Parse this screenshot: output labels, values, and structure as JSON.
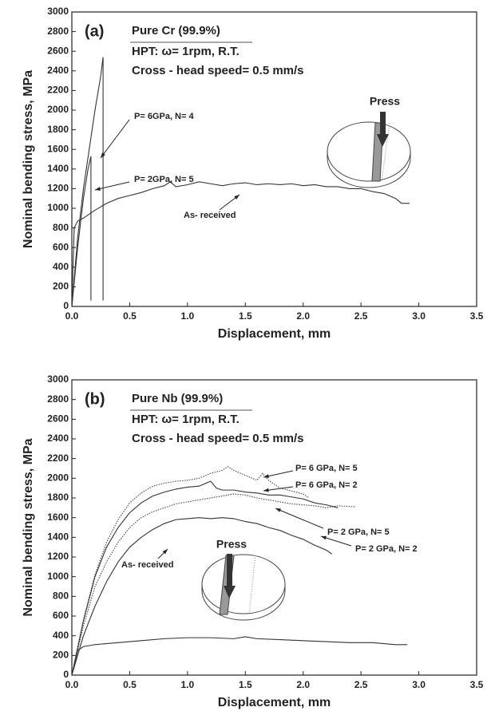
{
  "chart_data": [
    {
      "type": "line",
      "panel_label": "(a)",
      "title": "Pure Cr (99.9%)",
      "annotations": [
        "HPT: ω= 1rpm, R.T.",
        "Cross - head speed= 0.5 mm/s"
      ],
      "inset_label": "Press",
      "x_label": "Displacement, mm",
      "y_label": "Nominal bending stress, MPa",
      "xlim": [
        0,
        3.5
      ],
      "ylim": [
        0,
        3000
      ],
      "xticks": [
        {
          "value": 0,
          "label": "0.0"
        },
        0.5,
        {
          "value": 1,
          "label": "1.0"
        },
        1.5,
        {
          "value": 2,
          "label": "2.0"
        },
        2.5,
        {
          "value": 3,
          "label": "3.0"
        },
        3.5
      ],
      "yticks": [
        0,
        200,
        400,
        600,
        800,
        1000,
        1200,
        1400,
        1600,
        1800,
        2000,
        2200,
        2400,
        2600,
        2800,
        3000
      ],
      "series": [
        {
          "name": "P= 6GPa, N= 4",
          "color": "#333333",
          "dash": "solid",
          "x": [
            0,
            0.05,
            0.1,
            0.15,
            0.2,
            0.25,
            0.27,
            0.27
          ],
          "values": [
            0,
            700,
            1200,
            1600,
            2000,
            2350,
            2540,
            60
          ]
        },
        {
          "name": "P= 2GPa, N= 5",
          "color": "#333333",
          "dash": "solid",
          "x": [
            0,
            0.05,
            0.1,
            0.14,
            0.165,
            0.165
          ],
          "values": [
            0,
            600,
            1100,
            1400,
            1530,
            60
          ]
        },
        {
          "name": "As- received",
          "color": "#333333",
          "dash": "solid",
          "x": [
            0,
            0.02,
            0.05,
            0.1,
            0.2,
            0.3,
            0.4,
            0.5,
            0.6,
            0.7,
            0.8,
            0.85,
            0.9,
            1.0,
            1.1,
            1.2,
            1.3,
            1.4,
            1.5,
            1.6,
            1.7,
            1.8,
            1.9,
            2.0,
            2.1,
            2.2,
            2.3,
            2.4,
            2.5,
            2.6,
            2.7,
            2.8,
            2.85,
            2.92
          ],
          "values": [
            0,
            800,
            870,
            900,
            980,
            1050,
            1100,
            1130,
            1160,
            1200,
            1230,
            1270,
            1220,
            1240,
            1270,
            1250,
            1230,
            1250,
            1260,
            1240,
            1250,
            1240,
            1250,
            1230,
            1240,
            1220,
            1220,
            1200,
            1200,
            1170,
            1150,
            1100,
            1050,
            1050
          ]
        }
      ]
    },
    {
      "type": "line",
      "panel_label": "(b)",
      "title": "Pure Nb (99.9%)",
      "annotations": [
        "HPT: ω= 1rpm, R.T.",
        "Cross - head speed= 0.5 mm/s"
      ],
      "inset_label": "Press",
      "x_label": "Displacement, mm",
      "y_label": "Nominal bending stress, MPa",
      "xlim": [
        0,
        3.5
      ],
      "ylim": [
        0,
        3000
      ],
      "xticks": [
        {
          "value": 0,
          "label": "0.0"
        },
        0.5,
        {
          "value": 1,
          "label": "1.0"
        },
        1.5,
        {
          "value": 2,
          "label": "2.0"
        },
        2.5,
        {
          "value": 3,
          "label": "3.0"
        },
        3.5
      ],
      "yticks": [
        0,
        200,
        400,
        600,
        800,
        1000,
        1200,
        1400,
        1600,
        1800,
        2000,
        2200,
        2400,
        2600,
        2800,
        3000
      ],
      "series": [
        {
          "name": "P= 6 GPa, N= 5",
          "color": "#444444",
          "dash": "dotted",
          "x": [
            0,
            0.1,
            0.2,
            0.3,
            0.4,
            0.5,
            0.6,
            0.7,
            0.8,
            0.9,
            1.0,
            1.1,
            1.2,
            1.3,
            1.35,
            1.4,
            1.5,
            1.6,
            1.65,
            1.7,
            1.8,
            1.9,
            2.0,
            2.05
          ],
          "values": [
            0,
            560,
            1020,
            1350,
            1580,
            1750,
            1850,
            1920,
            1950,
            1970,
            1980,
            2000,
            2050,
            2080,
            2120,
            2080,
            2030,
            1980,
            2050,
            1980,
            1900,
            1870,
            1840,
            1800
          ]
        },
        {
          "name": "P= 6 GPa, N= 2",
          "color": "#333333",
          "dash": "solid",
          "x": [
            0,
            0.1,
            0.2,
            0.3,
            0.4,
            0.5,
            0.6,
            0.7,
            0.8,
            0.9,
            1.0,
            1.1,
            1.2,
            1.25,
            1.3,
            1.4,
            1.5,
            1.6,
            1.7,
            1.8,
            1.9,
            2.0,
            2.1,
            2.2,
            2.3
          ],
          "values": [
            0,
            550,
            1000,
            1300,
            1500,
            1650,
            1750,
            1820,
            1860,
            1890,
            1910,
            1920,
            1970,
            1900,
            1880,
            1880,
            1860,
            1850,
            1830,
            1830,
            1810,
            1790,
            1750,
            1730,
            1700
          ]
        },
        {
          "name": "P= 2 GPa, N= 5",
          "color": "#444444",
          "dash": "dotted",
          "x": [
            0,
            0.1,
            0.2,
            0.3,
            0.4,
            0.5,
            0.6,
            0.7,
            0.8,
            0.9,
            1.0,
            1.1,
            1.2,
            1.3,
            1.4,
            1.5,
            1.6,
            1.7,
            1.8,
            1.9,
            2.0,
            2.1,
            2.2,
            2.3,
            2.45
          ],
          "values": [
            0,
            500,
            900,
            1150,
            1350,
            1500,
            1600,
            1660,
            1700,
            1740,
            1760,
            1780,
            1800,
            1820,
            1840,
            1830,
            1800,
            1780,
            1760,
            1740,
            1730,
            1720,
            1700,
            1720,
            1710
          ]
        },
        {
          "name": "P= 2 GPa, N= 2",
          "color": "#333333",
          "dash": "solid",
          "x": [
            0,
            0.1,
            0.2,
            0.3,
            0.4,
            0.5,
            0.6,
            0.7,
            0.8,
            0.9,
            1.0,
            1.1,
            1.2,
            1.3,
            1.4,
            1.5,
            1.6,
            1.7,
            1.8,
            1.9,
            2.0,
            2.1,
            2.2,
            2.25
          ],
          "values": [
            0,
            400,
            700,
            950,
            1150,
            1300,
            1400,
            1480,
            1540,
            1580,
            1590,
            1600,
            1590,
            1600,
            1590,
            1560,
            1540,
            1500,
            1470,
            1420,
            1380,
            1320,
            1270,
            1230
          ]
        },
        {
          "name": "As- received",
          "color": "#333333",
          "dash": "solid",
          "x": [
            0,
            0.05,
            0.1,
            0.2,
            0.4,
            0.6,
            0.8,
            1.0,
            1.2,
            1.4,
            1.5,
            1.6,
            1.8,
            2.0,
            2.2,
            2.4,
            2.6,
            2.8,
            2.9
          ],
          "values": [
            0,
            250,
            290,
            310,
            330,
            350,
            370,
            380,
            380,
            370,
            390,
            370,
            360,
            350,
            340,
            330,
            330,
            310,
            310
          ]
        }
      ]
    }
  ]
}
